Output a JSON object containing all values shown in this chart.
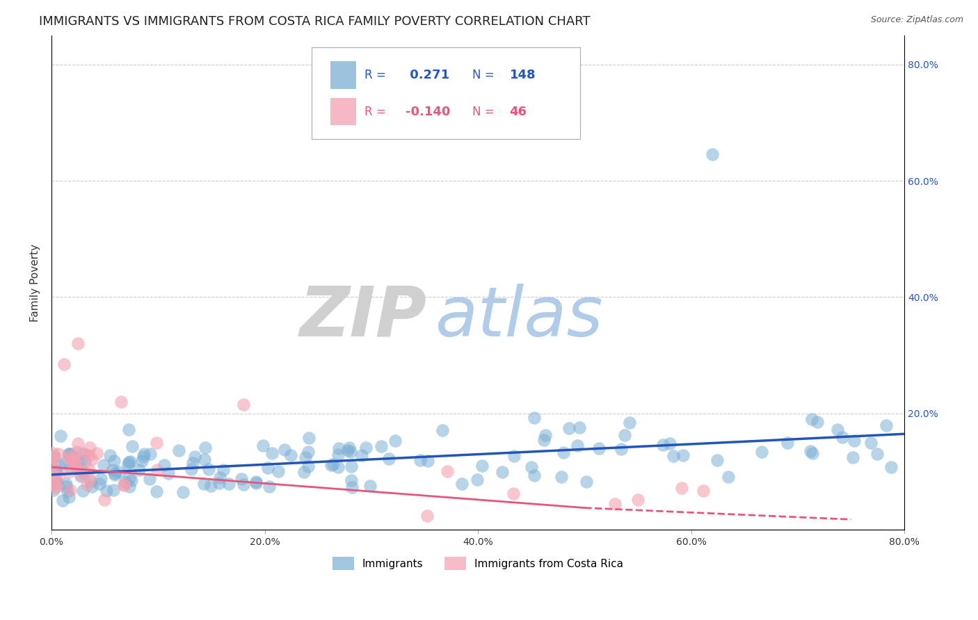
{
  "title": "IMMIGRANTS VS IMMIGRANTS FROM COSTA RICA FAMILY POVERTY CORRELATION CHART",
  "source_text": "Source: ZipAtlas.com",
  "ylabel": "Family Poverty",
  "xlim": [
    0.0,
    0.8
  ],
  "ylim": [
    0.0,
    0.85
  ],
  "xtick_labels": [
    "0.0%",
    "20.0%",
    "40.0%",
    "60.0%",
    "80.0%"
  ],
  "xtick_values": [
    0.0,
    0.2,
    0.4,
    0.6,
    0.8
  ],
  "ytick_labels": [
    "20.0%",
    "40.0%",
    "60.0%",
    "80.0%"
  ],
  "ytick_values": [
    0.2,
    0.4,
    0.6,
    0.8
  ],
  "grid_color": "#cccccc",
  "background_color": "#ffffff",
  "blue_color": "#7bafd4",
  "pink_color": "#f4a0b0",
  "blue_line_color": "#2255bb",
  "pink_line_color": "#e8547a",
  "R_blue": 0.271,
  "N_blue": 148,
  "R_pink": -0.14,
  "N_pink": 46,
  "title_fontsize": 13,
  "axis_label_fontsize": 11,
  "tick_fontsize": 10,
  "zip_color": "#d0d0d0",
  "atlas_color": "#b0cce8"
}
